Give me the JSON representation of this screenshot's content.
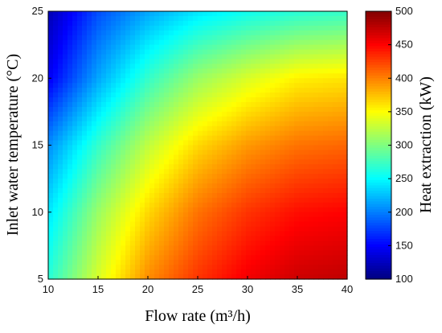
{
  "chart_data": {
    "type": "heatmap",
    "title": "",
    "xlabel": "Flow rate (m³/h)",
    "ylabel": "Inlet water temperature (°C)",
    "colorbar_label": "Heat extraction (kW)",
    "xlim": [
      10,
      40
    ],
    "ylim": [
      5,
      25
    ],
    "clim": [
      100,
      500
    ],
    "colormap": "jet",
    "x_ticks": [
      "10",
      "15",
      "20",
      "25",
      "30",
      "35",
      "40"
    ],
    "y_ticks": [
      "5",
      "10",
      "15",
      "20",
      "25"
    ],
    "colorbar_ticks": [
      "100",
      "150",
      "200",
      "250",
      "300",
      "350",
      "400",
      "450",
      "500"
    ],
    "x": [
      10,
      15,
      20,
      25,
      30,
      35,
      40
    ],
    "y": [
      5,
      10,
      15,
      20,
      25
    ],
    "z": [
      [
        265,
        335,
        395,
        430,
        455,
        470,
        475
      ],
      [
        240,
        310,
        365,
        405,
        430,
        445,
        450
      ],
      [
        205,
        270,
        325,
        365,
        390,
        405,
        410
      ],
      [
        145,
        215,
        270,
        310,
        335,
        355,
        360
      ],
      [
        120,
        180,
        215,
        240,
        255,
        265,
        270
      ]
    ]
  }
}
